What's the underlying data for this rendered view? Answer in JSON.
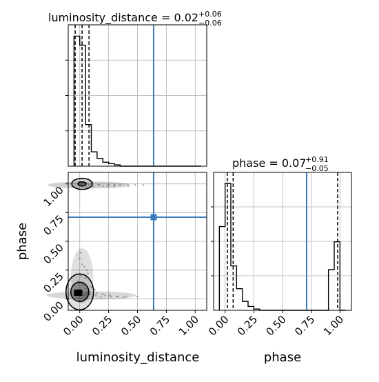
{
  "chart_data": {
    "type": "corner",
    "truth_color": "#3c7dbf",
    "line_color": "#000000",
    "grid": true,
    "parameters": [
      {
        "name": "luminosity_distance",
        "xlim": [
          -0.1,
          1.1
        ],
        "ticks": [
          "0.00",
          "0.25",
          "0.50",
          "0.75",
          "1.00"
        ],
        "tick_values": [
          0,
          0.25,
          0.5,
          0.75,
          1.0
        ],
        "truth": 0.64,
        "quantiles": [
          -0.04,
          0.02,
          0.08
        ],
        "title": {
          "main": "luminosity_distance = 0.02",
          "upper": "+0.06",
          "lower": "−0.06"
        },
        "histogram": {
          "bin_edges": [
            -0.05,
            0.0,
            0.05,
            0.1,
            0.15,
            0.2,
            0.25,
            0.3,
            0.35,
            0.4,
            0.45,
            0.5,
            0.55,
            0.6,
            0.65,
            0.7,
            0.75,
            0.8,
            0.85,
            0.9,
            0.95,
            1.0,
            1.05
          ],
          "counts": [
            1.0,
            0.93,
            0.32,
            0.11,
            0.06,
            0.03,
            0.02,
            0.01,
            0,
            0,
            0,
            0,
            0,
            0,
            0,
            0,
            0,
            0,
            0,
            0,
            0,
            0
          ]
        }
      },
      {
        "name": "phase",
        "xlim": [
          -0.1,
          1.1
        ],
        "ticks": [
          "0.00",
          "0.25",
          "0.50",
          "0.75",
          "1.00"
        ],
        "tick_values": [
          0,
          0.25,
          0.5,
          0.75,
          1.0
        ],
        "truth": 0.71,
        "quantiles": [
          0.02,
          0.07,
          0.98
        ],
        "title": {
          "main": "phase = 0.07",
          "upper": "+0.91",
          "lower": "−0.05"
        },
        "histogram": {
          "bin_edges": [
            -0.05,
            0.0,
            0.05,
            0.1,
            0.15,
            0.2,
            0.25,
            0.3,
            0.35,
            0.4,
            0.45,
            0.5,
            0.55,
            0.6,
            0.65,
            0.7,
            0.75,
            0.8,
            0.85,
            0.9,
            0.95,
            1.0,
            1.05
          ],
          "counts": [
            0.66,
            1.0,
            0.35,
            0.17,
            0.07,
            0.03,
            0.01,
            0,
            0,
            0,
            0,
            0,
            0,
            0,
            0,
            0,
            0,
            0,
            0,
            0.32,
            0.54,
            0
          ]
        }
      }
    ],
    "scatter": {
      "x": [
        0.01,
        0.03,
        0.05,
        0.08,
        0.12,
        0.16,
        0.2,
        0.25,
        0.3,
        0.35,
        0.42,
        0.48,
        0.55,
        -0.03,
        0.0,
        0.02,
        0.04,
        0.06,
        0.09,
        0.11,
        0.14,
        0.18,
        0.22,
        0.27,
        0.32,
        0.38,
        -0.02,
        0.01,
        0.03,
        0.06,
        0.1,
        0.13,
        0.02,
        0.05,
        0.0,
        0.04,
        0.07,
        0.01,
        0.03,
        0.05,
        0.08,
        0.15,
        0.2,
        0.26,
        0.33,
        0.4,
        0.5,
        -0.01,
        0.02,
        0.06,
        0.1,
        0.17,
        0.24,
        0.3
      ],
      "y": [
        0.99,
        0.98,
        1.0,
        0.99,
        0.98,
        0.99,
        0.98,
        0.99,
        0.98,
        0.99,
        0.98,
        0.99,
        0.99,
        0.05,
        0.04,
        0.06,
        0.03,
        0.05,
        0.04,
        0.02,
        0.03,
        0.02,
        0.03,
        0.02,
        0.02,
        0.01,
        0.15,
        0.2,
        0.12,
        0.25,
        0.1,
        0.08,
        0.3,
        0.18,
        0.35,
        0.28,
        0.22,
        0.4,
        0.14,
        0.09,
        0.06,
        0.05,
        0.04,
        0.03,
        0.02,
        0.02,
        0.02,
        1.02,
        1.01,
        0.97,
        1.0,
        0.99,
        0.98,
        0.99
      ]
    },
    "truth_point": [
      0.64,
      0.71
    ]
  }
}
